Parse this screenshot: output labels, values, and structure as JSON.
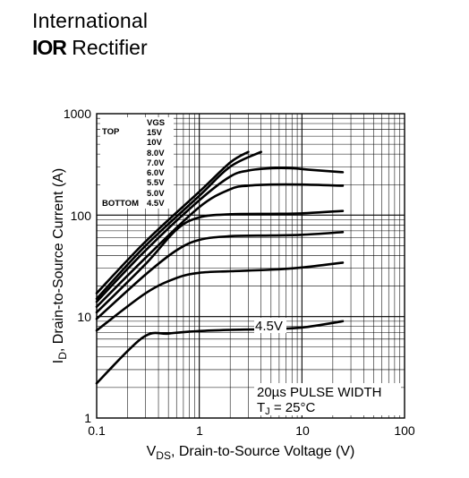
{
  "brand": {
    "line1": "International",
    "logo": "IOR",
    "line2_rest": "Rectifier"
  },
  "chart_data": {
    "type": "line",
    "xscale": "log",
    "yscale": "log",
    "xlim": [
      0.1,
      100
    ],
    "ylim": [
      1,
      1000
    ],
    "x_ticks": [
      "0.1",
      "1",
      "10",
      "100"
    ],
    "y_ticks": [
      "1",
      "10",
      "100",
      "1000"
    ],
    "xlabel_main": "V",
    "xlabel_sub": "DS",
    "xlabel_rest": ", Drain-to-Source Voltage (V)",
    "ylabel_main": "I",
    "ylabel_sub": "D",
    "ylabel_rest": ", Drain-to-Source Current (A)",
    "grid": true,
    "legend": {
      "header": "VGS",
      "top_label": "TOP",
      "bottom_label": "BOTTOM",
      "entries": [
        "15V",
        "10V",
        "8.0V",
        "7.0V",
        "6.0V",
        "5.5V",
        "5.0V",
        "4.5V"
      ]
    },
    "annotations": {
      "curve_label": "4.5V",
      "pulse_text": "20µs PULSE WIDTH",
      "tj_main": "T",
      "tj_sub": "J",
      "tj_rest": " = 25°C"
    },
    "series": [
      {
        "x": [
          0.1,
          0.3,
          1,
          2,
          3
        ],
        "y": [
          17,
          55,
          170,
          330,
          420
        ]
      },
      {
        "x": [
          0.1,
          0.3,
          1,
          2,
          4
        ],
        "y": [
          15,
          50,
          155,
          300,
          420
        ]
      },
      {
        "x": [
          0.1,
          0.3,
          1,
          2,
          3,
          5,
          8,
          12,
          25
        ],
        "y": [
          14,
          45,
          140,
          240,
          275,
          290,
          290,
          280,
          265
        ]
      },
      {
        "x": [
          0.1,
          0.3,
          1,
          2,
          3,
          5,
          10,
          25
        ],
        "y": [
          12.5,
          38,
          120,
          180,
          195,
          200,
          200,
          195
        ]
      },
      {
        "x": [
          0.1,
          0.3,
          0.6,
          1,
          2,
          5,
          10,
          25
        ],
        "y": [
          11,
          33,
          72,
          95,
          102,
          103,
          104,
          110
        ]
      },
      {
        "x": [
          0.1,
          0.3,
          0.6,
          1,
          2,
          5,
          10,
          25
        ],
        "y": [
          9.5,
          26,
          45,
          57,
          62,
          63,
          64,
          68
        ]
      },
      {
        "x": [
          0.1,
          0.3,
          0.6,
          1,
          2,
          5,
          10,
          25
        ],
        "y": [
          7.3,
          17,
          24,
          27,
          28,
          29,
          30.5,
          34
        ]
      },
      {
        "x": [
          0.1,
          0.28,
          0.5,
          1,
          2,
          4,
          10,
          25
        ],
        "y": [
          2.2,
          6.2,
          6.8,
          7.2,
          7.4,
          7.5,
          7.8,
          9
        ]
      }
    ]
  }
}
